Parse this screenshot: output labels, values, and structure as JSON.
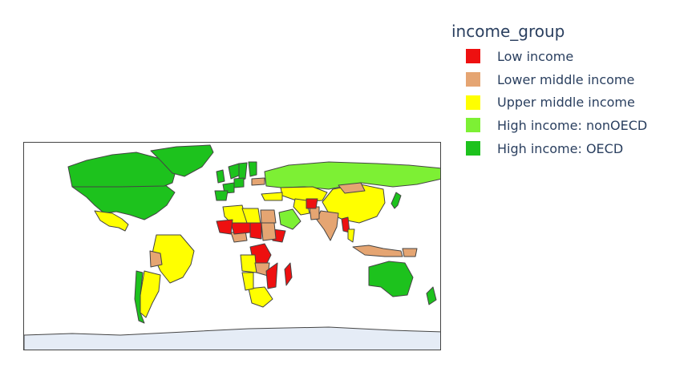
{
  "legend": {
    "title": "income_group",
    "items": [
      {
        "label": "Low income",
        "color": "#ee1010"
      },
      {
        "label": "Lower middle income",
        "color": "#e5a572"
      },
      {
        "label": "Upper middle income",
        "color": "#ffff00"
      },
      {
        "label": "High income: nonOECD",
        "color": "#7df034"
      },
      {
        "label": "High income: OECD",
        "color": "#1dc21d"
      }
    ]
  },
  "map": {
    "projection": "equirectangular",
    "ocean_color": "#ffffff",
    "land_border_color": "#444444",
    "antarctica_color": "#e5ecf6"
  },
  "chart_data": {
    "type": "choropleth",
    "legend_title": "income_group",
    "categories": [
      "Low income",
      "Lower middle income",
      "Upper middle income",
      "High income: nonOECD",
      "High income: OECD"
    ],
    "countries": [
      {
        "name": "USA",
        "group": "High income: OECD"
      },
      {
        "name": "Canada",
        "group": "High income: OECD"
      },
      {
        "name": "Greenland",
        "group": "High income: OECD"
      },
      {
        "name": "Mexico",
        "group": "Upper middle income"
      },
      {
        "name": "Brazil",
        "group": "Upper middle income"
      },
      {
        "name": "Argentina",
        "group": "Upper middle income"
      },
      {
        "name": "Chile",
        "group": "High income: OECD"
      },
      {
        "name": "Bolivia",
        "group": "Lower middle income"
      },
      {
        "name": "Russia",
        "group": "High income: nonOECD"
      },
      {
        "name": "China",
        "group": "Upper middle income"
      },
      {
        "name": "India",
        "group": "Lower middle income"
      },
      {
        "name": "Kazakhstan",
        "group": "Upper middle income"
      },
      {
        "name": "Mongolia",
        "group": "Lower middle income"
      },
      {
        "name": "Saudi Arabia",
        "group": "High income: nonOECD"
      },
      {
        "name": "Iran",
        "group": "Upper middle income"
      },
      {
        "name": "Australia",
        "group": "High income: OECD"
      },
      {
        "name": "Japan",
        "group": "High income: OECD"
      },
      {
        "name": "Indonesia",
        "group": "Lower middle income"
      },
      {
        "name": "DR Congo",
        "group": "Low income"
      },
      {
        "name": "Ethiopia",
        "group": "Low income"
      },
      {
        "name": "Madagascar",
        "group": "Low income"
      },
      {
        "name": "Algeria",
        "group": "Upper middle income"
      },
      {
        "name": "Libya",
        "group": "Upper middle income"
      },
      {
        "name": "South Africa",
        "group": "Upper middle income"
      },
      {
        "name": "Namibia",
        "group": "Upper middle income"
      },
      {
        "name": "Nigeria",
        "group": "Lower middle income"
      },
      {
        "name": "Niger",
        "group": "Low income"
      },
      {
        "name": "Mali",
        "group": "Low income"
      },
      {
        "name": "Chad",
        "group": "Low income"
      },
      {
        "name": "Egypt",
        "group": "Lower middle income"
      },
      {
        "name": "Angola",
        "group": "Upper middle income"
      },
      {
        "name": "Zambia",
        "group": "Lower middle income"
      },
      {
        "name": "Mozambique",
        "group": "Low income"
      },
      {
        "name": "Sudan",
        "group": "Lower middle income"
      },
      {
        "name": "Pakistan",
        "group": "Lower middle income"
      },
      {
        "name": "Afghanistan",
        "group": "Low income"
      },
      {
        "name": "Myanmar",
        "group": "Low income"
      },
      {
        "name": "Thailand",
        "group": "Upper middle income"
      },
      {
        "name": "Turkey",
        "group": "Upper middle income"
      },
      {
        "name": "Norway",
        "group": "High income: OECD"
      },
      {
        "name": "Sweden",
        "group": "High income: OECD"
      },
      {
        "name": "Finland",
        "group": "High income: OECD"
      },
      {
        "name": "France",
        "group": "High income: OECD"
      },
      {
        "name": "Germany",
        "group": "High income: OECD"
      },
      {
        "name": "Spain",
        "group": "High income: OECD"
      },
      {
        "name": "United Kingdom",
        "group": "High income: OECD"
      },
      {
        "name": "Ukraine",
        "group": "Lower middle income"
      },
      {
        "name": "Papua New Guinea",
        "group": "Lower middle income"
      },
      {
        "name": "New Zealand",
        "group": "High income: OECD"
      },
      {
        "name": "Antarctica",
        "group": ""
      }
    ]
  }
}
